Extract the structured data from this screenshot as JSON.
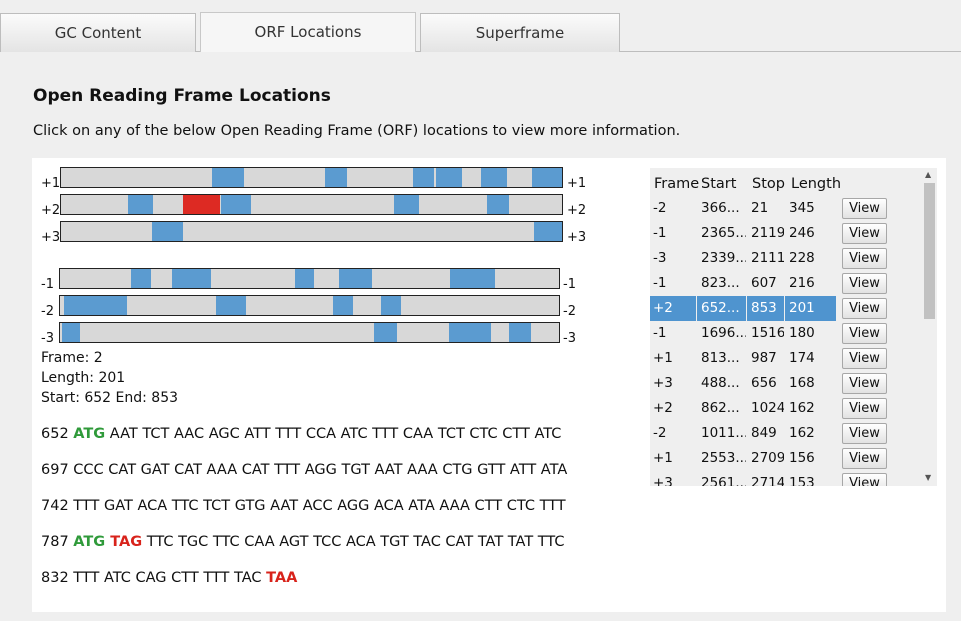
{
  "tabs": [
    {
      "label": "GC Content",
      "active": false
    },
    {
      "label": "ORF Locations",
      "active": true
    },
    {
      "label": "Superframe",
      "active": false
    }
  ],
  "title": "Open Reading Frame Locations",
  "subtitle": "Click on any of the below Open Reading Frame (ORF) locations to view more information.",
  "frame_labels": [
    "+1",
    "+2",
    "+3",
    "-1",
    "-2",
    "-3"
  ],
  "selection_info": {
    "frame": "Frame: 2",
    "length": "Length: 201",
    "startend": "Start: 652 End: 853"
  },
  "sequence": [
    {
      "pos": "652 ",
      "start": "ATG",
      "stop": "",
      "rest": " AAT TCT AAC AGC ATT TTT CCA ATC TTT CAA TCT CTC CTT ATC"
    },
    {
      "pos": "697 ",
      "start": "",
      "stop": "",
      "rest": "CCC CAT GAT CAT AAA CAT TTT AGG TGT AAT AAA CTG GTT ATT ATA"
    },
    {
      "pos": "742 ",
      "start": "",
      "stop": "",
      "rest": "TTT GAT ACA TTC TCT GTG AAT ACC AGG ACA ATA AAA CTT CTC TTT"
    },
    {
      "pos": "787 ",
      "start": "ATG",
      "stop": " TAG",
      "rest": " TTC TGC TTC CAA AGT TCC ACA TGT TAC CAT TAT TAT TTC"
    },
    {
      "pos": "832 ",
      "start": "",
      "stop": "",
      "rest": "TTT ATC CAG CTT TTT TAC ",
      "tail_stop": "TAA"
    }
  ],
  "table": {
    "headers": [
      "Frame",
      "Start",
      "Stop",
      "Length"
    ],
    "button_label": "View",
    "rows": [
      [
        "-2",
        "366...",
        "21",
        "345"
      ],
      [
        "-1",
        "2365...",
        "2119",
        "246"
      ],
      [
        "-3",
        "2339...",
        "2111",
        "228"
      ],
      [
        "-1",
        "823...",
        "607",
        "216"
      ],
      [
        "+2",
        "652...",
        "853",
        "201"
      ],
      [
        "-1",
        "1696...",
        "1516",
        "180"
      ],
      [
        "+1",
        "813...",
        "987",
        "174"
      ],
      [
        "+3",
        "488...",
        "656",
        "168"
      ],
      [
        "+2",
        "862...",
        "1024",
        "162"
      ],
      [
        "-2",
        "1011...",
        "849",
        "162"
      ],
      [
        "+1",
        "2553...",
        "2709",
        "156"
      ],
      [
        "+3",
        "2561...",
        "2714",
        "153"
      ]
    ],
    "selected_row": 4
  },
  "colors": {
    "orf": "#5b9bd0",
    "selected_orf": "#dd2a23",
    "start_codon": "#2f9a3a",
    "stop_codon": "#d8231b"
  }
}
